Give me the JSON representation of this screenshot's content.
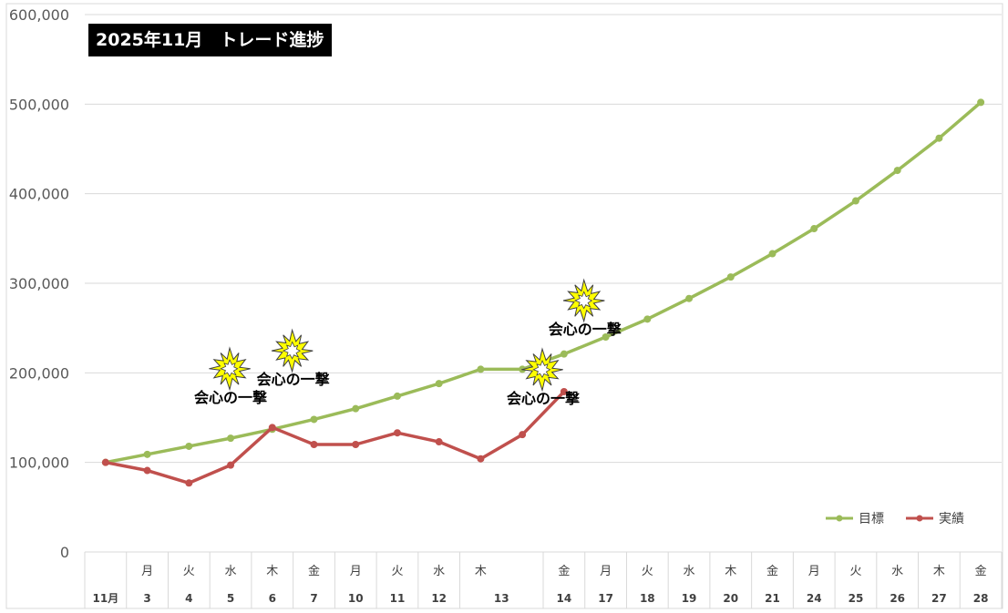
{
  "chart_data": {
    "type": "line",
    "title": "2025年11月　トレード進捗",
    "ylim": [
      0,
      600000
    ],
    "yticks": [
      "0",
      "100,000",
      "200,000",
      "300,000",
      "400,000",
      "500,000",
      "600,000"
    ],
    "grid": true,
    "legend_position": "bottom-right",
    "x_weekdays": [
      "",
      "月",
      "火",
      "水",
      "木",
      "金",
      "月",
      "火",
      "水",
      "木",
      "",
      "金",
      "月",
      "火",
      "水",
      "木",
      "金",
      "月",
      "火",
      "水",
      "木",
      "金"
    ],
    "x_days": [
      "11月",
      "3",
      "4",
      "5",
      "6",
      "7",
      "10",
      "11",
      "12",
      "13",
      "",
      "14",
      "17",
      "18",
      "19",
      "20",
      "21",
      "24",
      "25",
      "26",
      "27",
      "28"
    ],
    "series": [
      {
        "name": "目標",
        "color": "#9bbb59",
        "values": [
          100000,
          109000,
          118000,
          127000,
          137000,
          148000,
          160000,
          174000,
          188000,
          204000,
          204000,
          221000,
          240000,
          260000,
          283000,
          307000,
          333000,
          361000,
          392000,
          426000,
          462000,
          502000
        ]
      },
      {
        "name": "実績",
        "color": "#c0504d",
        "values": [
          100000,
          91000,
          77000,
          97000,
          139000,
          120000,
          120000,
          133000,
          123000,
          104000,
          131000,
          179000,
          null,
          null,
          null,
          null,
          null,
          null,
          null,
          null,
          null,
          null
        ]
      }
    ],
    "annotations": [
      {
        "text": "会心の一撃",
        "category_index": 3,
        "value": 167000
      },
      {
        "text": "会心の一撃",
        "category_index": 4.5,
        "value": 187000
      },
      {
        "text": "会心の一撃",
        "category_index": 10.5,
        "value": 166000
      },
      {
        "text": "会心の一撃",
        "category_index": 11.5,
        "value": 243000
      }
    ]
  }
}
